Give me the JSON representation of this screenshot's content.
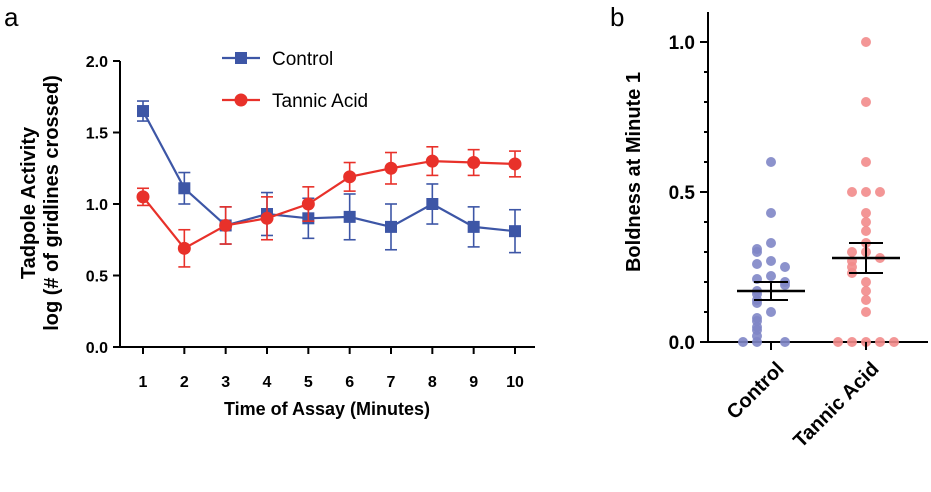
{
  "panels": {
    "a": "a",
    "b": "b"
  },
  "chart_data": [
    {
      "type": "line",
      "x": [
        1,
        2,
        3,
        4,
        5,
        6,
        7,
        8,
        9,
        10
      ],
      "xlabel": "Time of Assay (Minutes)",
      "ylabel_lines": [
        "Tadpole Activity",
        "log (# of gridlines crossed)"
      ],
      "ylim": [
        0,
        2.0
      ],
      "yticks": [
        "0.0",
        "0.5",
        "1.0",
        "1.5",
        "2.0"
      ],
      "legend_position": "top-center",
      "series": [
        {
          "name": "Control",
          "color": "#3d56a6",
          "marker": "square",
          "values": [
            1.65,
            1.11,
            0.85,
            0.93,
            0.9,
            0.91,
            0.84,
            1.0,
            0.84,
            0.81
          ],
          "error": [
            0.07,
            0.11,
            0.13,
            0.15,
            0.14,
            0.16,
            0.16,
            0.14,
            0.14,
            0.15
          ]
        },
        {
          "name": "Tannic Acid",
          "color": "#e8312a",
          "marker": "circle",
          "values": [
            1.05,
            0.69,
            0.85,
            0.9,
            1.0,
            1.19,
            1.25,
            1.3,
            1.29,
            1.28
          ],
          "error": [
            0.06,
            0.13,
            0.13,
            0.15,
            0.12,
            0.1,
            0.11,
            0.1,
            0.09,
            0.09
          ]
        }
      ]
    },
    {
      "type": "scatter",
      "categories": [
        "Control",
        "Tannic Acid"
      ],
      "ylabel": "Boldness at Minute 1",
      "ylim": [
        0,
        1.0
      ],
      "yticks": [
        "0.0",
        "0.5",
        "1.0"
      ],
      "colors": [
        "#7f86c6",
        "#f28b8b"
      ],
      "groups": [
        {
          "name": "Control",
          "mean": 0.17,
          "sem_low": 0.14,
          "sem_high": 0.2,
          "points": [
            0.6,
            0.43,
            0.33,
            0.31,
            0.3,
            0.27,
            0.26,
            0.25,
            0.22,
            0.21,
            0.2,
            0.19,
            0.17,
            0.16,
            0.14,
            0.13,
            0.1,
            0.08,
            0.07,
            0.05,
            0.04,
            0.02,
            0.0,
            0.0,
            0.0
          ]
        },
        {
          "name": "Tannic Acid",
          "mean": 0.28,
          "sem_low": 0.23,
          "sem_high": 0.33,
          "points": [
            1.0,
            0.8,
            0.6,
            0.5,
            0.5,
            0.5,
            0.43,
            0.4,
            0.37,
            0.33,
            0.3,
            0.3,
            0.28,
            0.27,
            0.25,
            0.23,
            0.2,
            0.17,
            0.14,
            0.1,
            0.0,
            0.0,
            0.0,
            0.0,
            0.0
          ]
        }
      ]
    }
  ]
}
